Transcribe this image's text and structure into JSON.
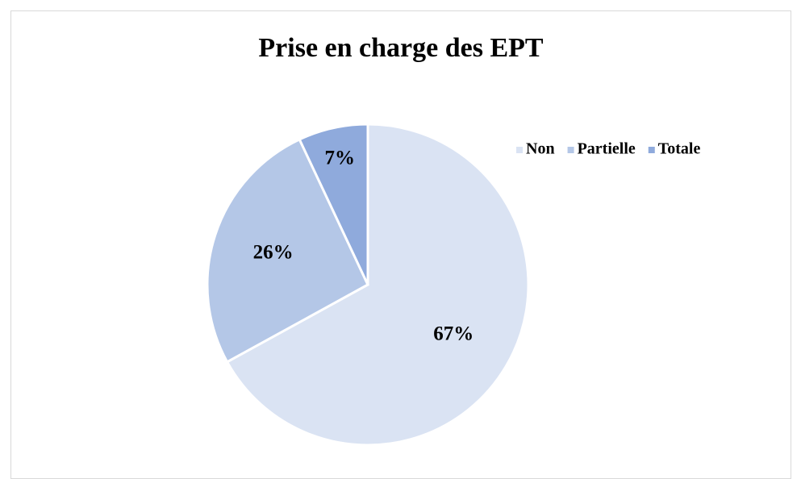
{
  "chart_data": {
    "type": "pie",
    "title": "Prise en charge des EPT",
    "categories": [
      "Non",
      "Partielle",
      "Totale"
    ],
    "values": [
      67,
      26,
      7
    ],
    "value_labels": [
      "67%",
      "26%",
      "7%"
    ],
    "colors": [
      "#dae3f3",
      "#b4c7e7",
      "#8faadc"
    ],
    "legend": "top-right"
  }
}
